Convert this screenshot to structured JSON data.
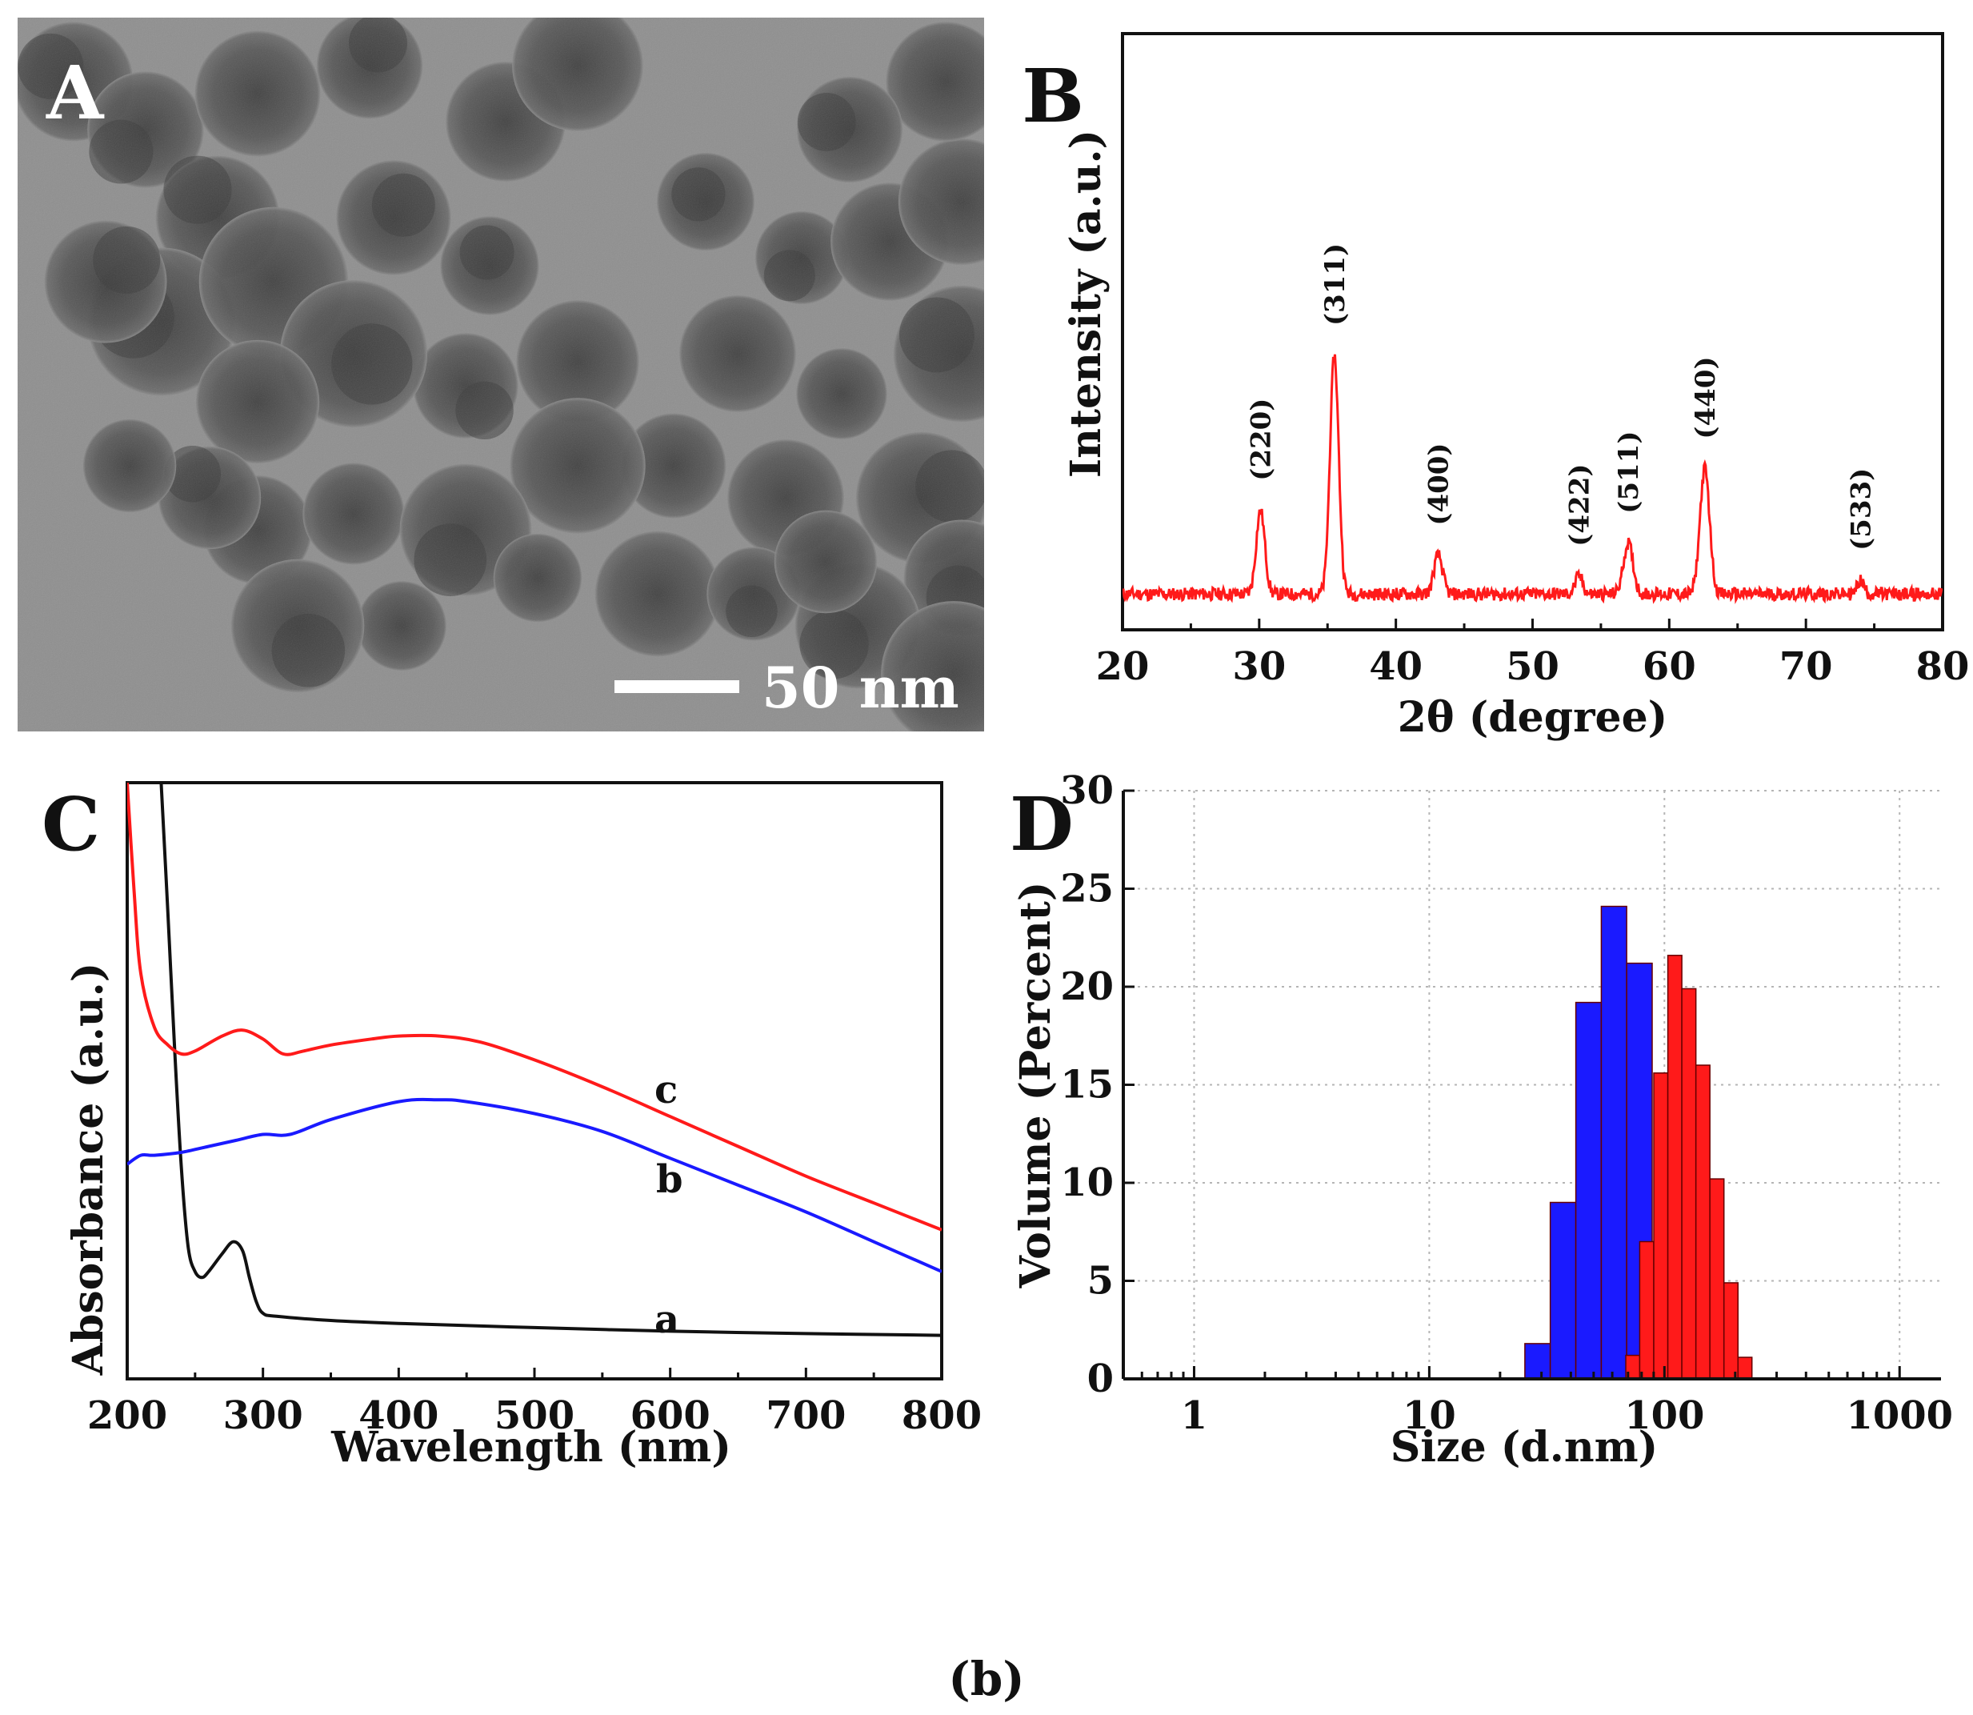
{
  "figure": {
    "caption": "(b)",
    "colors": {
      "red": "#ff1a1a",
      "blue": "#1a1aff",
      "black": "#111111",
      "tem_bg": "#8e8e8e",
      "particle": "#4a4a4a"
    }
  },
  "panel_a": {
    "letter": "A",
    "scale_bar_label": "50 nm"
  },
  "chart_data": [
    {
      "id": "B",
      "type": "line",
      "letter": "B",
      "xlabel": "2θ (degree)",
      "ylabel": "Intensity (a.u.)",
      "xlim": [
        20,
        80
      ],
      "ylim": [
        0,
        100
      ],
      "xticks": [
        "20",
        "30",
        "40",
        "50",
        "60",
        "70",
        "80"
      ],
      "baseline": 6,
      "peaks": [
        {
          "pos": 30.1,
          "height": 14,
          "width": 0.45,
          "label": "(220)"
        },
        {
          "pos": 35.5,
          "height": 40,
          "width": 0.45,
          "label": "(311)"
        },
        {
          "pos": 43.1,
          "height": 6.5,
          "width": 0.45,
          "label": "(400)"
        },
        {
          "pos": 53.4,
          "height": 3.0,
          "width": 0.4,
          "label": "(422)"
        },
        {
          "pos": 57.0,
          "height": 8.5,
          "width": 0.5,
          "label": "(511)"
        },
        {
          "pos": 62.6,
          "height": 21,
          "width": 0.5,
          "label": "(440)"
        },
        {
          "pos": 74.0,
          "height": 2.3,
          "width": 0.35,
          "label": "(533)"
        }
      ],
      "color": "#ff1a1a"
    },
    {
      "id": "C",
      "type": "line",
      "letter": "C",
      "xlabel": "Wavelength (nm)",
      "ylabel": "Absorbance (a.u.)",
      "xlim": [
        200,
        800
      ],
      "ylim": [
        0,
        100
      ],
      "xticks": [
        "200",
        "300",
        "400",
        "500",
        "600",
        "700",
        "800"
      ],
      "series": [
        {
          "name": "a",
          "color": "#111111",
          "x": [
            225,
            230,
            235,
            240,
            245,
            250,
            255,
            260,
            270,
            278,
            285,
            290,
            295,
            300,
            310,
            350,
            400,
            500,
            600,
            700,
            800
          ],
          "y": [
            100,
            78,
            55,
            35,
            22,
            18,
            17,
            18,
            21,
            23,
            21.5,
            17,
            13,
            11,
            10.5,
            9.8,
            9.3,
            8.6,
            8.0,
            7.6,
            7.3
          ]
        },
        {
          "name": "b",
          "color": "#1a1aff",
          "x": [
            200,
            210,
            220,
            240,
            260,
            280,
            300,
            320,
            350,
            400,
            430,
            450,
            500,
            550,
            600,
            650,
            700,
            750,
            800
          ],
          "y": [
            36,
            37.5,
            37.5,
            38,
            39,
            40,
            41,
            41,
            43.5,
            46.5,
            46.8,
            46.5,
            44.5,
            41.5,
            37,
            32.5,
            28,
            23,
            18
          ]
        },
        {
          "name": "c",
          "color": "#ff1a1a",
          "x": [
            200,
            205,
            210,
            220,
            230,
            240,
            250,
            270,
            285,
            300,
            315,
            330,
            350,
            380,
            400,
            430,
            460,
            500,
            550,
            600,
            650,
            700,
            750,
            800
          ],
          "y": [
            100,
            82,
            68,
            59,
            56,
            54.5,
            55,
            57.5,
            58.5,
            57,
            54.5,
            55,
            56,
            57,
            57.5,
            57.5,
            56.5,
            53.5,
            49,
            44,
            39,
            34,
            29.5,
            25
          ]
        }
      ]
    },
    {
      "id": "D",
      "type": "bar",
      "letter": "D",
      "xlabel": "Size (d.nm)",
      "ylabel": "Volume (Percent)",
      "xscale": "log",
      "xlim": [
        0.5,
        1500
      ],
      "ylim": [
        0,
        30
      ],
      "xticks": [
        "1",
        "10",
        "100",
        "1000"
      ],
      "yticks": [
        "0",
        "5",
        "10",
        "15",
        "20",
        "25",
        "30"
      ],
      "grid": true,
      "series": [
        {
          "name": "blue",
          "color": "#1a1aff",
          "bin_edges": [
            25.5,
            32.7,
            42.0,
            53.9,
            69.1,
            88.7
          ],
          "values": [
            1.8,
            9.0,
            19.2,
            24.1,
            21.2
          ]
        },
        {
          "name": "red",
          "color": "#ff1a1a",
          "bin_edges": [
            68.5,
            78.5,
            90.1,
            103.4,
            118.6,
            136.1,
            156.1,
            179.1,
            205.5,
            235.6
          ],
          "values": [
            1.2,
            7.0,
            15.6,
            21.6,
            19.9,
            16.0,
            10.2,
            4.9,
            1.1
          ]
        }
      ]
    }
  ]
}
